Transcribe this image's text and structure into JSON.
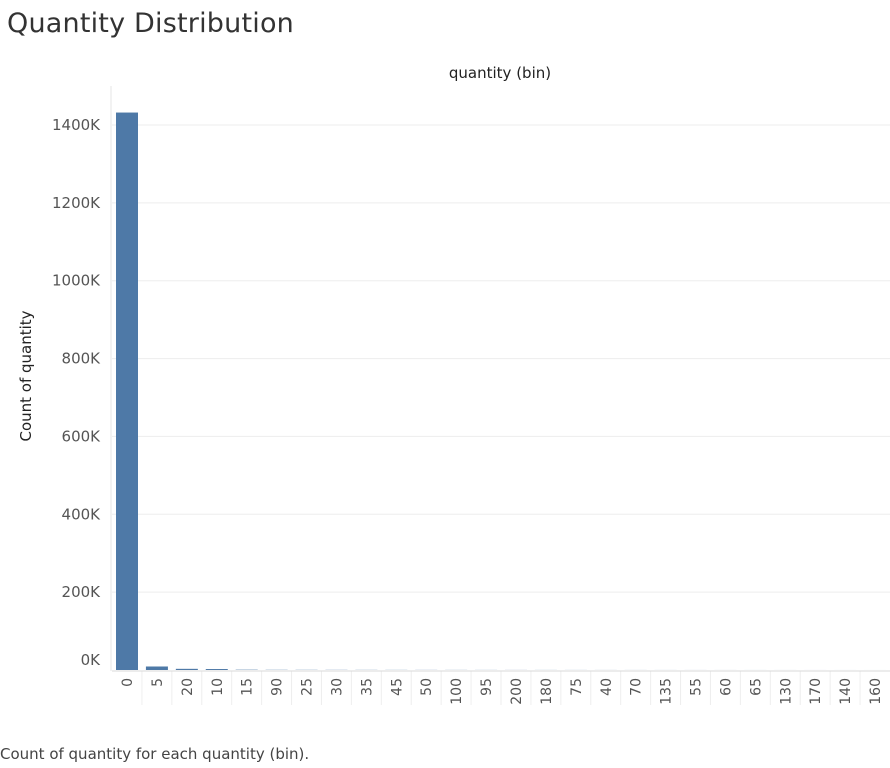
{
  "title": "Quantity Distribution",
  "footer": "Count of quantity for each quantity (bin).",
  "chart_data": {
    "type": "bar",
    "xlabel": "quantity (bin)",
    "ylabel": "Count of quantity",
    "ylim": [
      0,
      1450000
    ],
    "yticks": [
      0,
      200000,
      400000,
      600000,
      800000,
      1000000,
      1200000,
      1400000
    ],
    "ytick_labels": [
      "0K",
      "200K",
      "400K",
      "600K",
      "800K",
      "1000K",
      "1200K",
      "1400K"
    ],
    "grid": true,
    "bar_color": "#4e79a7",
    "categories": [
      "0",
      "5",
      "20",
      "10",
      "15",
      "90",
      "25",
      "30",
      "35",
      "45",
      "50",
      "100",
      "95",
      "200",
      "180",
      "75",
      "40",
      "70",
      "135",
      "55",
      "60",
      "65",
      "130",
      "170",
      "140",
      "160"
    ],
    "values": [
      1432000,
      9000,
      3000,
      2500,
      800,
      500,
      450,
      400,
      350,
      300,
      280,
      250,
      220,
      200,
      180,
      160,
      140,
      120,
      100,
      90,
      80,
      70,
      60,
      50,
      40,
      30
    ]
  }
}
